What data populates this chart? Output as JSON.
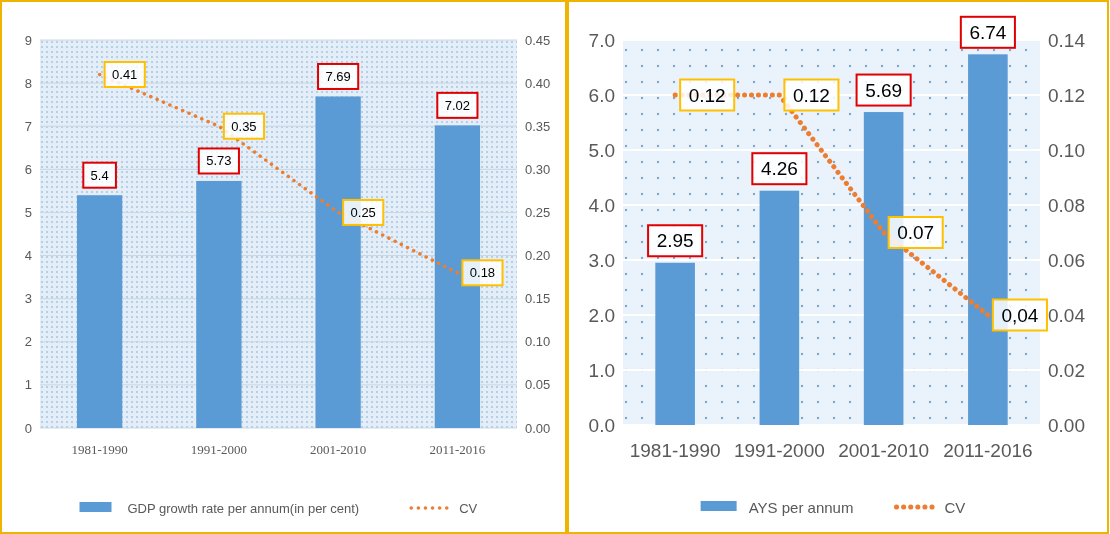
{
  "chart_data": [
    {
      "type": "bar",
      "categories": [
        "1981-1990",
        "1991-2000",
        "2001-2010",
        "2011-2016"
      ],
      "series": [
        {
          "name": "GDP growth rate per annum(in per cent)",
          "color": "#5b9bd5",
          "values": [
            5.4,
            5.73,
            7.69,
            7.02
          ]
        },
        {
          "name": "CV",
          "type": "line",
          "axis": "y2",
          "color": "#ed7d31",
          "line_style": "dotted",
          "values": [
            0.41,
            0.35,
            0.25,
            0.18
          ]
        }
      ],
      "ylim": [
        0,
        9
      ],
      "yticks": [
        0,
        1,
        2,
        3,
        4,
        5,
        6,
        7,
        8,
        9
      ],
      "y2lim": [
        0,
        0.45
      ],
      "y2ticks": [
        {
          "value": 0,
          "label": "0.00"
        },
        {
          "value": 0.05,
          "label": "0.05"
        },
        {
          "value": 0.1,
          "label": "0.10"
        },
        {
          "value": 0.15,
          "label": "0.15"
        },
        {
          "value": 0.2,
          "label": "0.20"
        },
        {
          "value": 0.25,
          "label": "0.25"
        },
        {
          "value": 0.3,
          "label": "0.30"
        },
        {
          "value": 0.35,
          "label": "0.35"
        },
        {
          "value": 0.4,
          "label": "0.40"
        },
        {
          "value": 0.45,
          "label": "0.45"
        }
      ],
      "grid": "y",
      "legend": "bottom",
      "marker": "none",
      "data_labels": true
    },
    {
      "type": "bar",
      "categories": [
        "1981-1990",
        "1991-2000",
        "2001-2010",
        "2011-2016"
      ],
      "series": [
        {
          "name": "AYS per annum",
          "color": "#5b9bd5",
          "values": [
            2.95,
            4.26,
            5.69,
            6.74
          ]
        },
        {
          "name": "CV",
          "type": "line",
          "axis": "y2",
          "color": "#ed7d31",
          "line_style": "dotted",
          "values": [
            0.12,
            0.12,
            0.07,
            0.04
          ],
          "value_labels": [
            "0.12",
            "0.12",
            "0.07",
            "0,04"
          ]
        }
      ],
      "ylim": [
        0,
        7
      ],
      "yticks": [
        {
          "value": 0,
          "label": "0.0"
        },
        {
          "value": 1,
          "label": "1.0"
        },
        {
          "value": 2,
          "label": "2.0"
        },
        {
          "value": 3,
          "label": "3.0"
        },
        {
          "value": 4,
          "label": "4.0"
        },
        {
          "value": 5,
          "label": "5.0"
        },
        {
          "value": 6,
          "label": "6.0"
        },
        {
          "value": 7,
          "label": "7.0"
        }
      ],
      "y2lim": [
        0,
        0.14
      ],
      "y2ticks": [
        {
          "value": 0,
          "label": "0.00"
        },
        {
          "value": 0.02,
          "label": "0.02"
        },
        {
          "value": 0.04,
          "label": "0.04"
        },
        {
          "value": 0.06,
          "label": "0.06"
        },
        {
          "value": 0.08,
          "label": "0.08"
        },
        {
          "value": 0.1,
          "label": "0.10"
        },
        {
          "value": 0.12,
          "label": "0.12"
        },
        {
          "value": 0.14,
          "label": "0.14"
        }
      ],
      "grid": "y",
      "legend": "bottom",
      "marker": "none",
      "data_labels": true
    }
  ]
}
